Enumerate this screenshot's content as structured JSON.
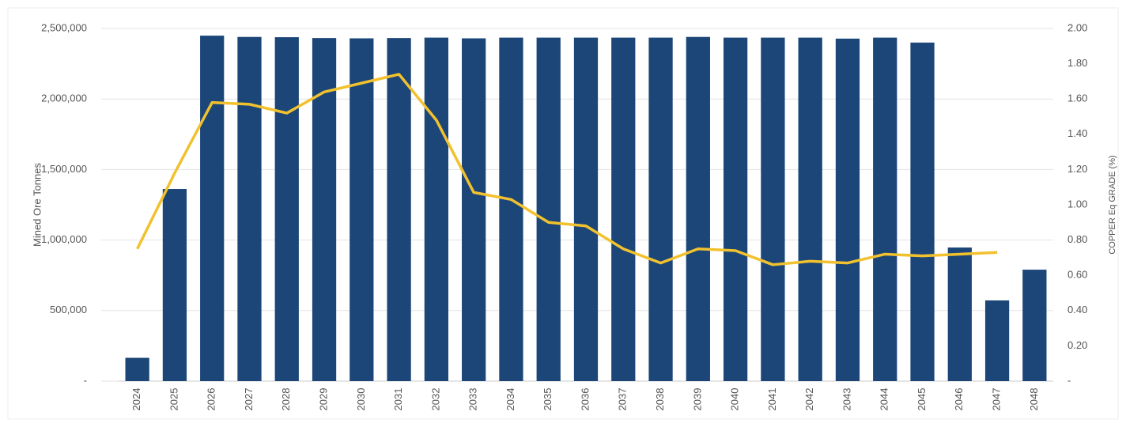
{
  "chart_data": {
    "type": "bar",
    "y_label": "Mined Ore Tonnes",
    "y2_label": "COPPER Eq GRADE (%)",
    "categories": [
      "2024",
      "2025",
      "2026",
      "2027",
      "2028",
      "2029",
      "2030",
      "2031",
      "2032",
      "2033",
      "2034",
      "2035",
      "2036",
      "2037",
      "2038",
      "2039",
      "2040",
      "2041",
      "2042",
      "2043",
      "2044",
      "2045",
      "2046",
      "2047",
      "2048"
    ],
    "series": [
      {
        "type": "bar",
        "color": "#1b4677",
        "values": [
          165000,
          1362000,
          2449000,
          2440000,
          2438000,
          2432000,
          2430000,
          2432000,
          2435000,
          2430000,
          2435000,
          2435000,
          2435000,
          2435000,
          2435000,
          2440000,
          2435000,
          2435000,
          2435000,
          2428000,
          2435000,
          2400000,
          947000,
          572000,
          790000
        ]
      },
      {
        "type": "line",
        "axis": "y2",
        "color": "#f2c12e",
        "values": [
          0.75,
          1.18,
          1.58,
          1.57,
          1.52,
          1.64,
          1.69,
          1.74,
          1.48,
          1.07,
          1.03,
          0.9,
          0.88,
          0.75,
          0.67,
          0.75,
          0.74,
          0.66,
          0.68,
          0.67,
          0.72,
          0.71,
          0.72,
          0.73,
          null
        ]
      }
    ],
    "ylim": [
      0,
      2500000
    ],
    "yticks": [
      {
        "value": 0,
        "label": "-"
      },
      {
        "value": 500000,
        "label": "500,000"
      },
      {
        "value": 1000000,
        "label": "1,000,000"
      },
      {
        "value": 1500000,
        "label": "1,500,000"
      },
      {
        "value": 2000000,
        "label": "2,000,000"
      },
      {
        "value": 2500000,
        "label": "2,500,000"
      }
    ],
    "y2lim": [
      0,
      2
    ],
    "y2ticks": [
      {
        "value": 0,
        "label": "-"
      },
      {
        "value": 0.2,
        "label": "0.20"
      },
      {
        "value": 0.4,
        "label": "0.40"
      },
      {
        "value": 0.6,
        "label": "0.60"
      },
      {
        "value": 0.8,
        "label": "0.80"
      },
      {
        "value": 1,
        "label": "1.00"
      },
      {
        "value": 1.2,
        "label": "1.20"
      },
      {
        "value": 1.4,
        "label": "1.40"
      },
      {
        "value": 1.6,
        "label": "1.60"
      },
      {
        "value": 1.8,
        "label": "1.80"
      },
      {
        "value": 2,
        "label": "2.00"
      }
    ],
    "grid": true
  }
}
